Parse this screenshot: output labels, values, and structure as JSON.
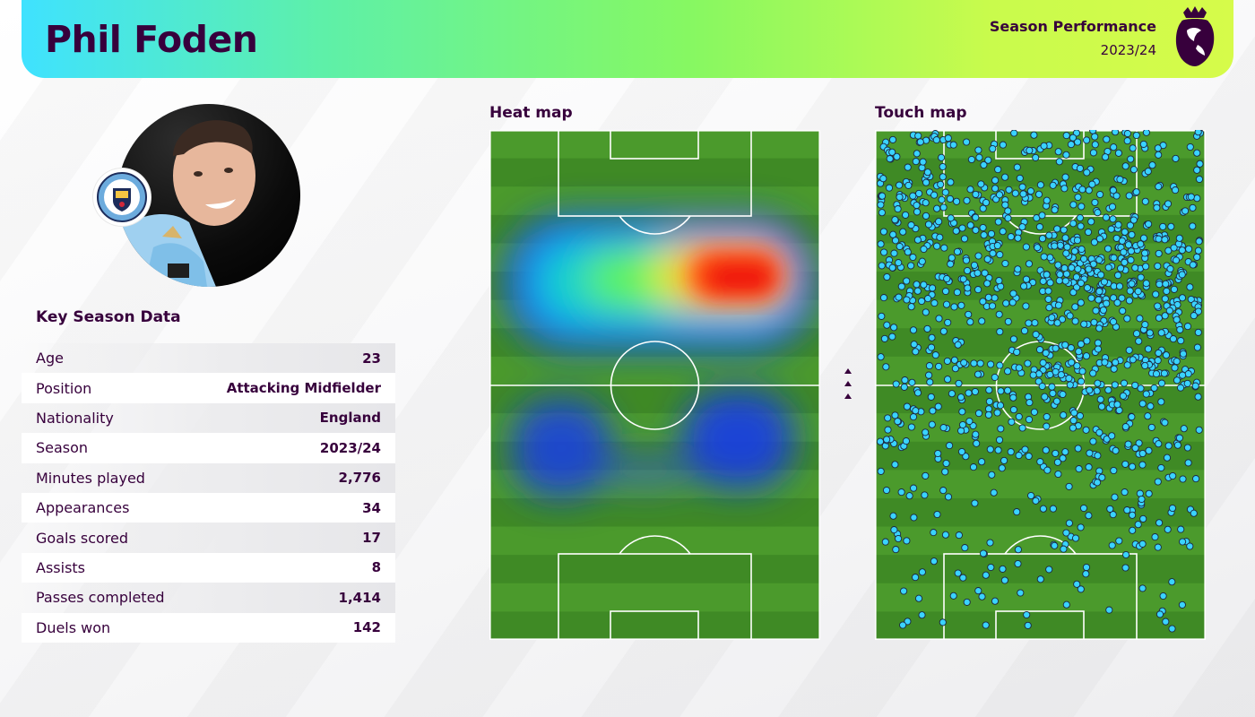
{
  "header": {
    "player_name": "Phil Foden",
    "subtitle": "Season Performance",
    "season": "2023/24"
  },
  "key_data": {
    "title": "Key Season Data",
    "rows": [
      {
        "label": "Age",
        "value": "23"
      },
      {
        "label": "Position",
        "value": "Attacking Midfielder"
      },
      {
        "label": "Nationality",
        "value": "England"
      },
      {
        "label": "Season",
        "value": "2023/24"
      },
      {
        "label": "Minutes played",
        "value": "2,776"
      },
      {
        "label": "Appearances",
        "value": "34"
      },
      {
        "label": "Goals scored",
        "value": "17"
      },
      {
        "label": "Assists",
        "value": "8"
      },
      {
        "label": "Passes completed",
        "value": "1,414"
      },
      {
        "label": "Duels won",
        "value": "142"
      }
    ]
  },
  "heat_map": {
    "title": "Heat map"
  },
  "touch_map": {
    "title": "Touch map"
  },
  "icons": {
    "league_logo": "premier-league-lion-icon",
    "club_badge": "manchester-city-badge-icon",
    "direction": "attack-direction-arrows-icon"
  },
  "colors": {
    "brand_purple": "#37003c",
    "pitch_green_light": "#4b9a2c",
    "pitch_green_dark": "#3f8a25",
    "touch_dot": "#3ad3ff"
  }
}
